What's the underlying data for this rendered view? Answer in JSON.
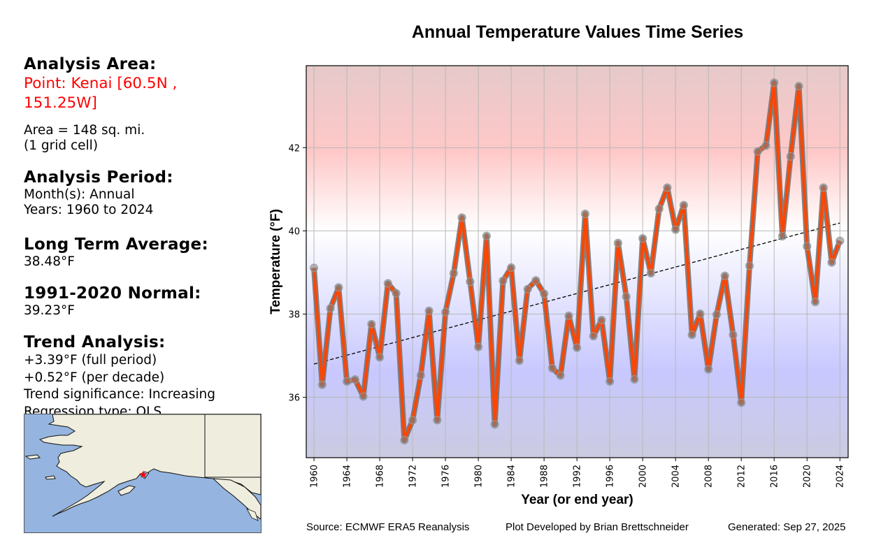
{
  "sidebar": {
    "area_heading": "Analysis Area:",
    "point_line1": "Point: Kenai [60.5N ,",
    "point_line2": "151.25W]",
    "area_line1": "Area = 148 sq. mi.",
    "area_line2": "(1 grid cell)",
    "period_heading": "Analysis Period:",
    "months": "Month(s): Annual",
    "years": "Years: 1960 to 2024",
    "lta_heading": "Long Term Average:",
    "lta_value": "38.48°F",
    "normal_heading": "1991-2020 Normal:",
    "normal_value": "39.23°F",
    "trend_heading": "Trend Analysis:",
    "trend_full": "+3.39°F (full period)",
    "trend_decade": "+0.52°F (per decade)",
    "trend_significance": "Trend significance: Increasing",
    "regression_type": "Regression type: OLS"
  },
  "map": {
    "region": "Alaska",
    "marker": "red-star",
    "land_color": "#efedde",
    "ocean_color": "#95b4df"
  },
  "footer": {
    "source": "Source: ECMWF ERA5 Reanalysis",
    "developer": "Plot Developed by Brian Brettschneider",
    "generated": "Generated: Sep 27, 2025"
  },
  "chart_data": {
    "type": "line",
    "title": "Annual Temperature Values Time Series",
    "xlabel": "Year (or end year)",
    "ylabel": "Temperature (°F)",
    "xlim": [
      1959.06,
      2025.0
    ],
    "ylim": [
      34.55,
      43.97
    ],
    "grid": true,
    "xticks": [
      1960,
      1964,
      1968,
      1972,
      1976,
      1980,
      1984,
      1988,
      1992,
      1996,
      2000,
      2004,
      2008,
      2012,
      2016,
      2020,
      2024
    ],
    "yticks": [
      36,
      38,
      40,
      42
    ],
    "x": [
      1960,
      1961,
      1962,
      1963,
      1964,
      1965,
      1966,
      1967,
      1968,
      1969,
      1970,
      1971,
      1972,
      1973,
      1974,
      1975,
      1976,
      1977,
      1978,
      1979,
      1980,
      1981,
      1982,
      1983,
      1984,
      1985,
      1986,
      1987,
      1988,
      1989,
      1990,
      1991,
      1992,
      1993,
      1994,
      1995,
      1996,
      1997,
      1998,
      1999,
      2000,
      2001,
      2002,
      2003,
      2004,
      2005,
      2006,
      2007,
      2008,
      2009,
      2010,
      2011,
      2012,
      2013,
      2014,
      2015,
      2016,
      2017,
      2018,
      2019,
      2020,
      2021,
      2022,
      2023,
      2024
    ],
    "series": [
      {
        "name": "Annual Temperature",
        "color": "#ff4500",
        "values": [
          39.11,
          36.3,
          38.14,
          38.64,
          36.38,
          36.43,
          36.02,
          37.76,
          36.96,
          38.74,
          38.5,
          34.97,
          35.45,
          36.53,
          38.08,
          35.45,
          38.05,
          38.98,
          40.32,
          38.78,
          37.21,
          39.88,
          35.35,
          38.8,
          39.12,
          36.88,
          38.6,
          38.81,
          38.49,
          36.7,
          36.52,
          37.96,
          37.19,
          40.41,
          37.47,
          37.86,
          36.38,
          39.71,
          38.42,
          36.43,
          39.82,
          38.98,
          40.53,
          41.04,
          40.03,
          40.62,
          37.5,
          38.01,
          36.67,
          37.99,
          38.92,
          37.5,
          35.87,
          39.16,
          41.91,
          42.05,
          43.56,
          39.87,
          41.79,
          43.48,
          39.63,
          38.29,
          41.04,
          39.24,
          39.76
        ]
      }
    ],
    "trend": {
      "name": "OLS trend",
      "style": "dashed",
      "color": "#000000",
      "start": [
        1960,
        36.8
      ],
      "end": [
        2024,
        40.19
      ]
    },
    "background_gradient": {
      "warm_color": "#ffc8c8",
      "neutral_color": "#ffffff",
      "cool_color": "#c8c8ff",
      "neutral_value": 39.8
    }
  }
}
